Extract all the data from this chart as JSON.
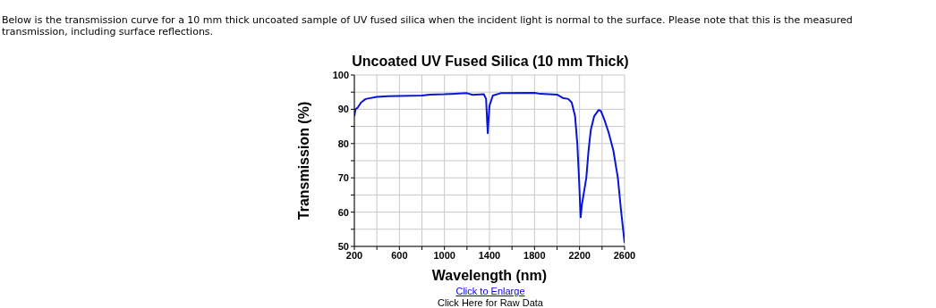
{
  "chart_data": {
    "type": "line",
    "title": "Uncoated UV Fused Silica (10 mm Thick)",
    "xlabel": "Wavelength (nm)",
    "ylabel": "Transmission (%)",
    "annotations": [
      "Below is the transmission curve for a 10 mm thick uncoated sample of UV fused silica when the incident light is normal to the surface. Please note that this is the measured transmission, including surface reflections.",
      "Click to Enlarge",
      "Click Here for Raw Data"
    ],
    "x": [
      200,
      210,
      230,
      260,
      300,
      400,
      500,
      800,
      870,
      1000,
      1200,
      1250,
      1350,
      1370,
      1380,
      1385,
      1390,
      1400,
      1430,
      1500,
      1800,
      1850,
      2000,
      2050,
      2100,
      2130,
      2160,
      2180,
      2195,
      2205,
      2210,
      2220,
      2240,
      2260,
      2280,
      2300,
      2330,
      2370,
      2390,
      2420,
      2460,
      2500,
      2540,
      2570,
      2600
    ],
    "series": [
      {
        "color": "#0a14d8",
        "values": [
          88,
          90,
          90.5,
          92,
          93,
          93.6,
          93.8,
          94,
          94.3,
          94.4,
          94.7,
          94.2,
          94.4,
          93,
          86,
          83,
          86,
          91,
          94,
          94.7,
          94.8,
          94.5,
          94.3,
          93.3,
          93,
          92,
          88,
          80,
          70,
          62,
          58.5,
          62,
          66,
          70,
          78,
          84,
          88,
          89.8,
          89.5,
          87,
          83,
          78,
          70,
          60,
          51
        ]
      }
    ],
    "xlim": [
      200,
      2600
    ],
    "xticks": [
      200,
      {
        "value": 400,
        "label": null
      },
      600,
      {
        "value": 800,
        "label": null
      },
      1000,
      {
        "value": 1200,
        "label": null
      },
      1400,
      {
        "value": 1600,
        "label": null
      },
      1800,
      {
        "value": 2000,
        "label": null
      },
      2200,
      {
        "value": 2400,
        "label": null
      },
      2600
    ],
    "ylim": [
      50,
      100
    ],
    "yticks": [
      50,
      {
        "value": 55,
        "label": null
      },
      60,
      {
        "value": 65,
        "label": null
      },
      70,
      {
        "value": 75,
        "label": null
      },
      80,
      {
        "value": 85,
        "label": null
      },
      90,
      {
        "value": 95,
        "label": null
      },
      100
    ],
    "grid": true,
    "marker": "none",
    "line_style": "solid",
    "legend": false
  }
}
